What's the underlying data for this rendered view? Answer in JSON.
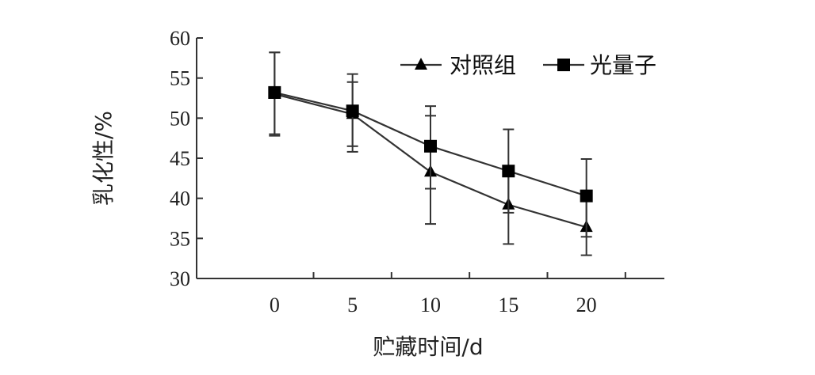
{
  "chart_data": {
    "type": "line",
    "title": "",
    "xlabel": "贮藏时间/d",
    "ylabel": "乳化性/%",
    "x": [
      0,
      5,
      10,
      15,
      20
    ],
    "x_ticks": [
      "0",
      "5",
      "10",
      "15",
      "20"
    ],
    "y_ticks": [
      "60",
      "55",
      "50",
      "45",
      "40",
      "35",
      "30"
    ],
    "xlim": [
      -5,
      25
    ],
    "ylim": [
      30,
      60
    ],
    "grid": false,
    "legend_position": "top-right",
    "series": [
      {
        "name": "对照组",
        "marker": "triangle",
        "values": [
          53.0,
          50.5,
          43.3,
          39.2,
          36.4
        ],
        "err_low": [
          47.8,
          45.8,
          36.8,
          34.3,
          32.9
        ],
        "err_high": [
          58.2,
          54.5,
          50.3,
          44.0,
          39.8
        ]
      },
      {
        "name": "光量子",
        "marker": "square",
        "values": [
          53.2,
          50.9,
          46.5,
          43.4,
          40.3
        ],
        "err_low": [
          48.0,
          46.5,
          41.2,
          38.2,
          35.2
        ],
        "err_high": [
          58.2,
          55.5,
          51.5,
          48.6,
          44.9
        ]
      }
    ],
    "colors": {
      "line": "#333333",
      "marker": "#000000"
    }
  }
}
